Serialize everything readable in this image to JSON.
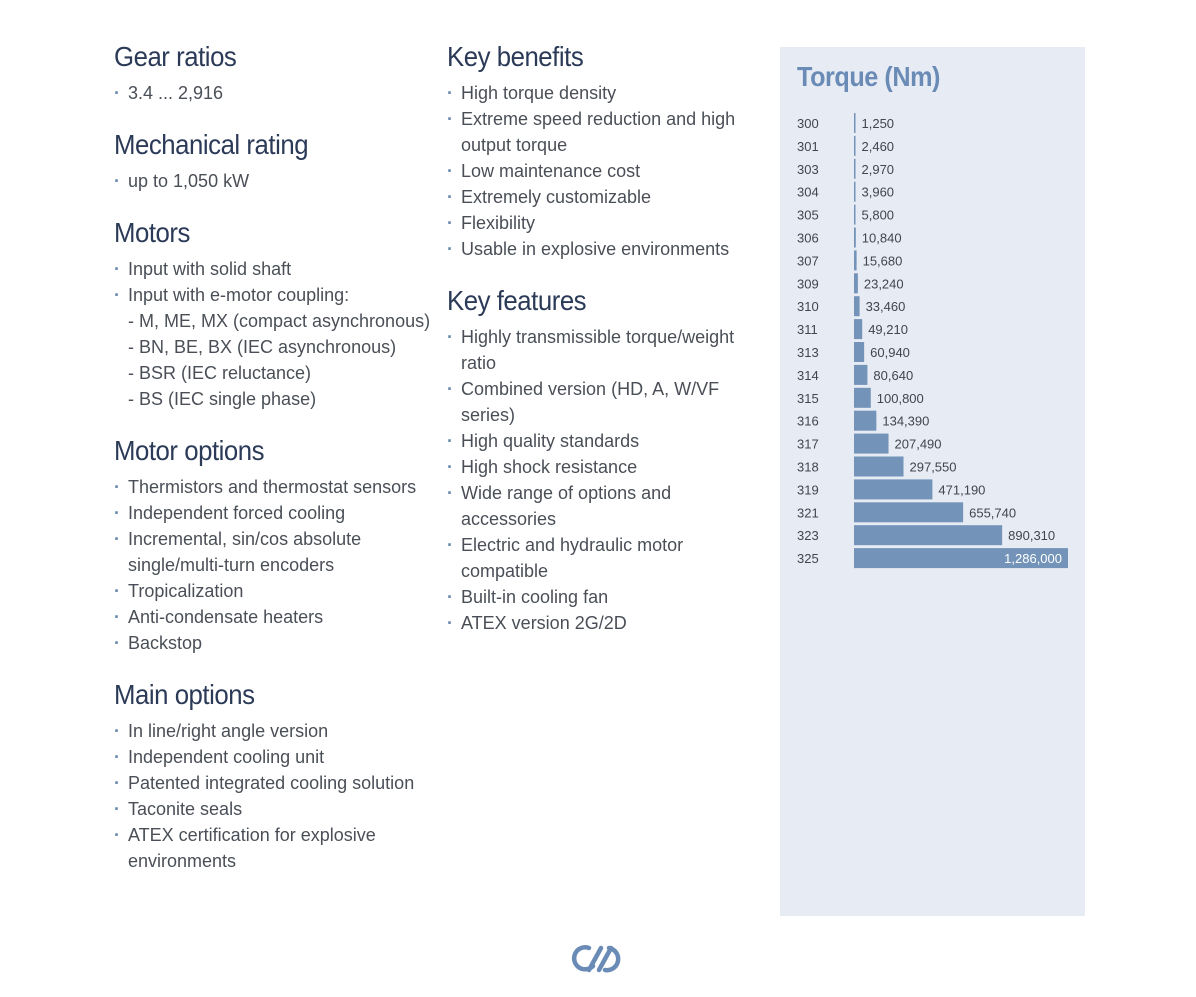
{
  "left_column": [
    {
      "title": "Gear ratios",
      "items": [
        "3.4 ... 2,916"
      ]
    },
    {
      "title": "Mechanical rating",
      "items": [
        "up to 1,050 kW"
      ]
    },
    {
      "title": "Motors",
      "items": [
        "Input with solid shaft",
        "Input with e-motor coupling:"
      ],
      "sub_items": [
        "- M, ME, MX (compact asynchronous)",
        "- BN, BE, BX (IEC asynchronous)",
        "- BSR (IEC reluctance)",
        "- BS (IEC single phase)"
      ]
    },
    {
      "title": "Motor options",
      "items": [
        "Thermistors and thermostat sensors",
        "Independent forced cooling",
        "Incremental, sin/cos absolute single/multi-turn encoders",
        "Tropicalization",
        "Anti-condensate heaters",
        "Backstop"
      ]
    },
    {
      "title": "Main options",
      "items": [
        "In line/right angle version",
        "Independent cooling unit",
        "Patented integrated cooling solution",
        "Taconite seals",
        "ATEX certification for explosive environments"
      ]
    }
  ],
  "middle_column": [
    {
      "title": "Key benefits",
      "items": [
        "High torque density",
        "Extreme speed reduction and high output torque",
        "Low maintenance cost",
        "Extremely customizable",
        "Flexibility",
        "Usable in explosive environments"
      ]
    },
    {
      "title": "Key features",
      "items": [
        "Highly transmissible torque/weight ratio",
        "Combined version (HD, A, W/VF series)",
        "High quality standards",
        "High shock resistance",
        "Wide range of options and accessories",
        "Electric and hydraulic motor compatible",
        "Built-in cooling fan",
        "ATEX version 2G/2D"
      ]
    }
  ],
  "chart_data": {
    "type": "bar",
    "orientation": "horizontal",
    "title": "Torque (Nm)",
    "categories": [
      "300",
      "301",
      "303",
      "304",
      "305",
      "306",
      "307",
      "309",
      "310",
      "311",
      "313",
      "314",
      "315",
      "316",
      "317",
      "318",
      "319",
      "321",
      "323",
      "325"
    ],
    "values": [
      1250,
      2460,
      2970,
      3960,
      5800,
      10840,
      15680,
      23240,
      33460,
      49210,
      60940,
      80640,
      100800,
      134390,
      207490,
      297550,
      471190,
      655740,
      890310,
      1286000
    ],
    "value_labels": [
      "1,250",
      "2,460",
      "2,970",
      "3,960",
      "5,800",
      "10,840",
      "15,680",
      "23,240",
      "33,460",
      "49,210",
      "60,940",
      "80,640",
      "100,800",
      "134,390",
      "207,490",
      "297,550",
      "471,190",
      "655,740",
      "890,310",
      "1,286,000"
    ],
    "bar_color": "#7393b9",
    "panel_color": "#e7ebf4"
  },
  "logo": {
    "icon": "brand-logo-icon",
    "color": "#6a8bb6"
  }
}
